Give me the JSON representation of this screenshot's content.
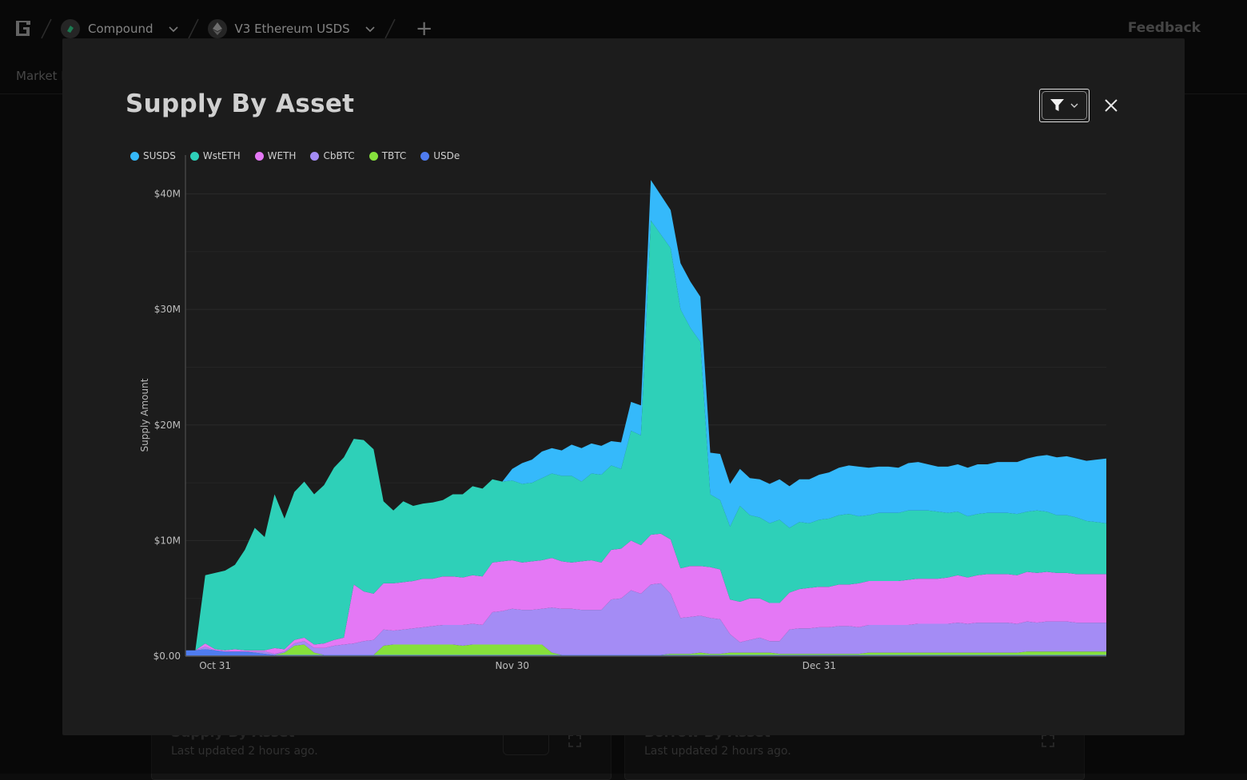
{
  "topbar": {
    "protocol": "Compound",
    "market": "V3 Ethereum USDS",
    "feedback": "Feedback"
  },
  "subnav": {
    "label": "Market H"
  },
  "background_cards": [
    {
      "title": "Supply By Asset",
      "updated": "Last updated 2 hours ago."
    },
    {
      "title": "Borrow By Asset",
      "updated": "Last updated 2 hours ago."
    }
  ],
  "modal": {
    "title": "Supply By Asset"
  },
  "colors": {
    "SUSDS": "#35b9fb",
    "WstETH": "#2ed0b8",
    "WETH": "#e478f5",
    "CbBTC": "#a48cf5",
    "TBTC": "#86e03c",
    "USDe": "#4f7cf0"
  },
  "chart_data": {
    "type": "area",
    "stacked": true,
    "title": "Supply By Asset",
    "xlabel": "",
    "ylabel": "Supply Amount",
    "y_unit": "USD millions",
    "ylim": [
      0,
      41.7
    ],
    "y_ticks": [
      "$0.00",
      "$10M",
      "$20M",
      "$30M",
      "$40M"
    ],
    "x_ticks": [
      "Oct 31",
      "Nov 30",
      "Dec 31"
    ],
    "legend_position": "top-left",
    "grid": true,
    "x": [
      "Oct 28",
      "Oct 29",
      "Oct 30",
      "Oct 31",
      "Nov 1",
      "Nov 2",
      "Nov 3",
      "Nov 4",
      "Nov 5",
      "Nov 6",
      "Nov 7",
      "Nov 8",
      "Nov 9",
      "Nov 10",
      "Nov 11",
      "Nov 12",
      "Nov 13",
      "Nov 14",
      "Nov 15",
      "Nov 16",
      "Nov 17",
      "Nov 18",
      "Nov 19",
      "Nov 20",
      "Nov 21",
      "Nov 22",
      "Nov 23",
      "Nov 24",
      "Nov 25",
      "Nov 26",
      "Nov 27",
      "Nov 28",
      "Nov 29",
      "Nov 30",
      "Dec 1",
      "Dec 2",
      "Dec 3",
      "Dec 4",
      "Dec 5",
      "Dec 6",
      "Dec 7",
      "Dec 8",
      "Dec 9",
      "Dec 10",
      "Dec 11",
      "Dec 12",
      "Dec 13",
      "Dec 14",
      "Dec 15",
      "Dec 16",
      "Dec 17",
      "Dec 18",
      "Dec 19",
      "Dec 20",
      "Dec 21",
      "Dec 22",
      "Dec 23",
      "Dec 24",
      "Dec 25",
      "Dec 26",
      "Dec 27",
      "Dec 28",
      "Dec 29",
      "Dec 30",
      "Dec 31",
      "Jan 1",
      "Jan 2",
      "Jan 3",
      "Jan 4",
      "Jan 5",
      "Jan 6",
      "Jan 7",
      "Jan 8",
      "Jan 9",
      "Jan 10",
      "Jan 11",
      "Jan 12",
      "Jan 13",
      "Jan 14",
      "Jan 15",
      "Jan 16",
      "Jan 17",
      "Jan 18",
      "Jan 19",
      "Jan 20",
      "Jan 21",
      "Jan 22",
      "Jan 23",
      "Jan 24",
      "Jan 25",
      "Jan 26",
      "Jan 27",
      "Jan 28",
      "Jan 29"
    ],
    "series": [
      {
        "name": "USDe",
        "values": [
          0.5,
          0.5,
          0.6,
          0.5,
          0.4,
          0.4,
          0.4,
          0.3,
          0.2,
          0.1,
          0.1,
          0.1,
          0.1,
          0.1,
          0.1,
          0.1,
          0.1,
          0.1,
          0.1,
          0.1,
          0.1,
          0.1,
          0.1,
          0.1,
          0.1,
          0.1,
          0.1,
          0.1,
          0.1,
          0.1,
          0.1,
          0.1,
          0.1,
          0.1,
          0.1,
          0.1,
          0.1,
          0.1,
          0.1,
          0.1,
          0.1,
          0.1,
          0.1,
          0.1,
          0.1,
          0.1,
          0.1,
          0.1,
          0.1,
          0.1,
          0.1,
          0.1,
          0.1,
          0.1,
          0.1,
          0.1,
          0.1,
          0.1,
          0.1,
          0.1,
          0.1,
          0.1,
          0.1,
          0.1,
          0.1,
          0.1,
          0.1,
          0.1,
          0.1,
          0.1,
          0.1,
          0.1,
          0.1,
          0.1,
          0.1,
          0.1,
          0.1,
          0.1,
          0.1,
          0.1,
          0.1,
          0.1,
          0.1,
          0.1,
          0.1,
          0.1,
          0.1,
          0.1,
          0.1,
          0.1,
          0.1,
          0.1,
          0.1,
          0.1
        ]
      },
      {
        "name": "TBTC",
        "values": [
          0,
          0,
          0,
          0,
          0,
          0,
          0,
          0,
          0,
          0,
          0.2,
          0.8,
          0.9,
          0.2,
          0,
          0,
          0,
          0,
          0,
          0,
          0.8,
          0.9,
          0.9,
          0.9,
          0.9,
          0.9,
          0.9,
          0.9,
          0.8,
          0.9,
          0.9,
          0.9,
          0.9,
          0.9,
          0.9,
          0.9,
          0.9,
          0.2,
          0,
          0,
          0,
          0,
          0,
          0,
          0,
          0,
          0,
          0,
          0,
          0.1,
          0.1,
          0.1,
          0.2,
          0.1,
          0.1,
          0.2,
          0.2,
          0.2,
          0.2,
          0.2,
          0.1,
          0.1,
          0.1,
          0.1,
          0.1,
          0.1,
          0.1,
          0.1,
          0.1,
          0.2,
          0.2,
          0.2,
          0.2,
          0.2,
          0.2,
          0.2,
          0.2,
          0.2,
          0.2,
          0.2,
          0.2,
          0.2,
          0.2,
          0.2,
          0.2,
          0.3,
          0.3,
          0.3,
          0.3,
          0.3,
          0.3,
          0.3,
          0.3,
          0.3
        ]
      },
      {
        "name": "CbBTC",
        "values": [
          0,
          0,
          0.2,
          0,
          0,
          0,
          0,
          0.1,
          0.2,
          0.1,
          0.1,
          0.2,
          0.3,
          0.4,
          0.6,
          0.8,
          0.9,
          1.0,
          1.2,
          1.3,
          1.4,
          1.2,
          1.3,
          1.4,
          1.5,
          1.6,
          1.7,
          1.7,
          1.8,
          1.8,
          1.7,
          2.8,
          2.9,
          3.1,
          3.0,
          3.0,
          3.1,
          3.9,
          4.0,
          4.0,
          3.9,
          3.9,
          3.9,
          4.8,
          4.9,
          5.6,
          5.3,
          6.1,
          6.2,
          5.2,
          3.1,
          3.2,
          3.2,
          3.1,
          3.0,
          1.6,
          0.9,
          1.1,
          1.3,
          1.0,
          1.1,
          2.1,
          2.2,
          2.2,
          2.3,
          2.3,
          2.4,
          2.4,
          2.3,
          2.4,
          2.4,
          2.4,
          2.4,
          2.4,
          2.5,
          2.5,
          2.5,
          2.5,
          2.6,
          2.5,
          2.6,
          2.6,
          2.6,
          2.6,
          2.5,
          2.6,
          2.5,
          2.6,
          2.6,
          2.6,
          2.5,
          2.5,
          2.5,
          2.5
        ]
      },
      {
        "name": "WETH",
        "values": [
          0,
          0,
          0.3,
          0.1,
          0.1,
          0.2,
          0.1,
          0.1,
          0.1,
          0.5,
          0.2,
          0.3,
          0.3,
          0.3,
          0.4,
          0.5,
          0.6,
          5.1,
          4.3,
          4.0,
          4.0,
          4.1,
          4.1,
          4.1,
          4.2,
          4.1,
          4.2,
          4.2,
          4.1,
          4.2,
          4.2,
          4.3,
          4.3,
          4.2,
          4.1,
          4.2,
          4.2,
          4.3,
          4.1,
          4.0,
          4.2,
          4.3,
          4.1,
          4.3,
          4.3,
          4.3,
          4.2,
          4.3,
          4.3,
          4.7,
          4.3,
          4.4,
          4.3,
          4.4,
          4.3,
          3.0,
          3.5,
          3.6,
          3.4,
          3.3,
          3.3,
          3.2,
          3.4,
          3.5,
          3.5,
          3.5,
          3.6,
          3.6,
          3.8,
          3.8,
          3.8,
          3.8,
          3.8,
          3.9,
          3.9,
          3.9,
          3.9,
          4.0,
          4.1,
          4.0,
          4.1,
          4.2,
          4.2,
          4.2,
          4.2,
          4.3,
          4.3,
          4.3,
          4.2,
          4.2,
          4.2,
          4.2,
          4.2,
          4.2
        ]
      },
      {
        "name": "WstETH",
        "values": [
          0,
          0,
          5.9,
          6.6,
          6.9,
          7.3,
          8.7,
          10.6,
          9.8,
          13.3,
          11.3,
          12.8,
          13.5,
          13.0,
          13.7,
          14.9,
          15.6,
          12.6,
          13.1,
          12.5,
          7.1,
          6.3,
          7.0,
          6.5,
          6.5,
          6.6,
          6.6,
          7.1,
          7.2,
          7.7,
          7.6,
          7.2,
          6.9,
          6.9,
          6.8,
          6.8,
          7.1,
          7.3,
          7.4,
          7.5,
          6.9,
          7.5,
          7.6,
          7.3,
          6.9,
          9.5,
          9.5,
          27.2,
          25.9,
          25.2,
          22.4,
          20.6,
          19.4,
          6.3,
          6.0,
          6.3,
          8.3,
          7.2,
          7.0,
          6.9,
          7.2,
          5.6,
          5.8,
          5.6,
          5.8,
          5.9,
          6.0,
          6.1,
          5.8,
          5.7,
          5.9,
          5.9,
          5.9,
          6.0,
          5.9,
          5.9,
          5.8,
          5.6,
          5.5,
          5.3,
          5.3,
          5.3,
          5.3,
          5.3,
          5.3,
          5.2,
          5.4,
          5.2,
          5.0,
          5.0,
          4.9,
          4.6,
          4.5,
          4.4
        ]
      },
      {
        "name": "SUSDS",
        "values": [
          0,
          0,
          0,
          0,
          0,
          0,
          0,
          0,
          0,
          0,
          0,
          0,
          0,
          0,
          0,
          0,
          0,
          0,
          0,
          0,
          0,
          0,
          0,
          0,
          0,
          0,
          0,
          0,
          0,
          0,
          0,
          0,
          0,
          1.0,
          1.8,
          2.0,
          2.3,
          2.2,
          2.2,
          2.7,
          2.9,
          2.6,
          2.5,
          2.1,
          2.3,
          2.5,
          2.6,
          3.5,
          3.4,
          3.3,
          4.0,
          4.0,
          3.9,
          3.6,
          4.0,
          3.7,
          3.2,
          3.2,
          3.3,
          3.4,
          3.5,
          3.6,
          3.7,
          3.8,
          3.9,
          4.0,
          4.1,
          4.2,
          4.3,
          4.1,
          4.0,
          4.0,
          3.9,
          4.1,
          4.2,
          4.0,
          3.9,
          4.0,
          4.1,
          4.2,
          4.3,
          4.2,
          4.4,
          4.4,
          4.5,
          4.6,
          4.7,
          4.9,
          5.0,
          5.1,
          5.1,
          5.2,
          5.4,
          5.6
        ]
      }
    ]
  }
}
